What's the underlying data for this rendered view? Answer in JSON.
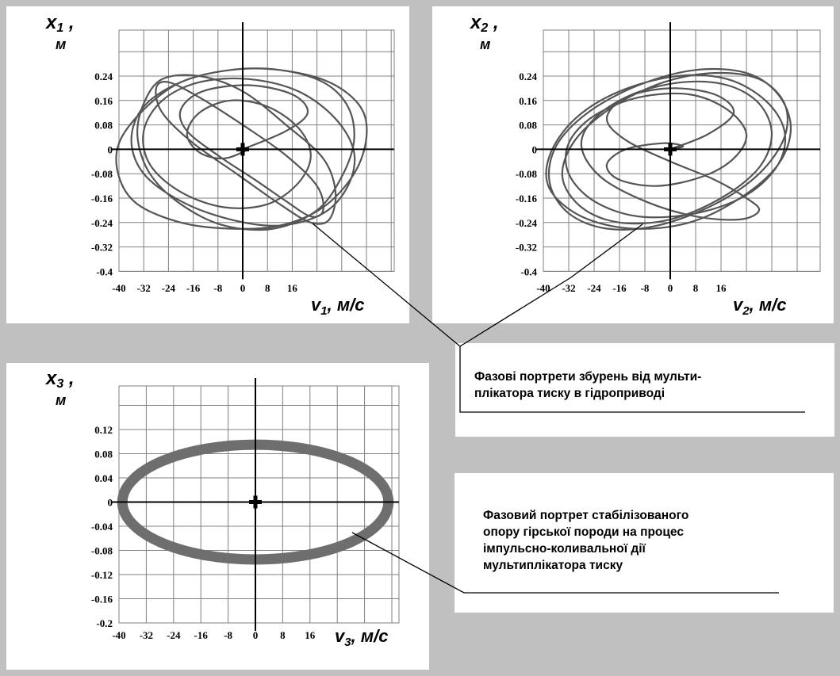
{
  "chart_data": [
    {
      "type": "line",
      "ylabel_symbol": "x",
      "ylabel_sub": "1",
      "ylabel_suffix": ",",
      "ylabel_unit": "м",
      "xlabel_symbol": "v",
      "xlabel_sub": "1",
      "xlabel_unit": ", м/с",
      "x_ticks": [
        "-40",
        "-32",
        "-24",
        "-16",
        "-8",
        "0",
        "8",
        "16"
      ],
      "y_ticks": [
        "0.24",
        "0.16",
        "0.08",
        "0",
        "-0.08",
        "-0.16",
        "-0.24",
        "-0.32",
        "-0.4"
      ],
      "xlim": [
        -40,
        40
      ],
      "ylim": [
        -0.4,
        0.32
      ],
      "grid": true,
      "series": [
        {
          "description_free": true,
          "x": [
            0,
            14,
            21,
            16,
            2,
            -13,
            -20,
            -18,
            -8,
            4,
            14,
            22,
            26,
            24,
            14,
            0,
            -14,
            -24,
            -28,
            -26,
            -16,
            -2,
            12,
            22,
            28,
            30,
            26,
            14,
            0,
            -14,
            -26,
            -32,
            -34,
            -30,
            -20,
            -6,
            10,
            24,
            32,
            36,
            34,
            26,
            12,
            -4,
            -20,
            -32,
            -40,
            -40,
            -34,
            -20,
            -4,
            12,
            26,
            36,
            40,
            38,
            28,
            12,
            -4,
            -20,
            -32,
            -36,
            -32,
            -20,
            -4,
            12,
            26,
            34,
            36,
            30,
            18,
            2,
            -14,
            -26,
            -32,
            -30,
            -20,
            -6,
            8,
            18,
            22,
            18,
            8,
            -4,
            -14,
            -18,
            -14,
            -6,
            2
          ],
          "y": [
            0,
            0.06,
            0.12,
            0.18,
            0.21,
            0.19,
            0.13,
            0.06,
            -0.02,
            -0.1,
            -0.17,
            -0.22,
            -0.2,
            -0.12,
            -0.02,
            0.08,
            0.17,
            0.22,
            0.2,
            0.12,
            0.02,
            -0.08,
            -0.18,
            -0.24,
            -0.23,
            -0.14,
            -0.03,
            0.08,
            0.19,
            0.24,
            0.23,
            0.15,
            0.04,
            -0.08,
            -0.18,
            -0.25,
            -0.26,
            -0.2,
            -0.09,
            0.03,
            0.14,
            0.22,
            0.26,
            0.26,
            0.22,
            0.13,
            0.02,
            -0.09,
            -0.18,
            -0.24,
            -0.26,
            -0.25,
            -0.19,
            -0.08,
            0.04,
            0.14,
            0.22,
            0.26,
            0.26,
            0.22,
            0.14,
            0.03,
            -0.08,
            -0.17,
            -0.23,
            -0.25,
            -0.21,
            -0.12,
            -0.01,
            0.1,
            0.19,
            0.23,
            0.22,
            0.16,
            0.06,
            -0.05,
            -0.14,
            -0.19,
            -0.18,
            -0.11,
            -0.02,
            0.07,
            0.14,
            0.16,
            0.12,
            0.05,
            -0.01,
            -0.03,
            0
          ]
        }
      ]
    },
    {
      "type": "line",
      "ylabel_symbol": "x",
      "ylabel_sub": "2",
      "ylabel_suffix": ",",
      "ylabel_unit": "м",
      "xlabel_symbol": "v",
      "xlabel_sub": "2",
      "xlabel_unit": ", м/с",
      "x_ticks": [
        "-40",
        "-32",
        "-24",
        "-16",
        "-8",
        "0",
        "8",
        "16"
      ],
      "y_ticks": [
        "0.24",
        "0.16",
        "0.08",
        "0",
        "-0.08",
        "-0.16",
        "-0.24",
        "-0.32",
        "-0.4"
      ],
      "xlim": [
        -40,
        40
      ],
      "ylim": [
        -0.4,
        0.32
      ],
      "grid": true,
      "series": [
        {
          "x": [
            0,
            12,
            20,
            14,
            0,
            -14,
            -20,
            -14,
            0,
            14,
            24,
            28,
            22,
            8,
            -8,
            -22,
            -28,
            -24,
            -12,
            4,
            18,
            28,
            32,
            28,
            16,
            0,
            -16,
            -28,
            -34,
            -30,
            -18,
            -2,
            14,
            28,
            36,
            36,
            28,
            14,
            -4,
            -20,
            -32,
            -38,
            -36,
            -26,
            -10,
            8,
            24,
            34,
            38,
            34,
            22,
            6,
            -12,
            -28,
            -38,
            -38,
            -30,
            -16,
            2,
            18,
            30,
            36,
            34,
            24,
            8,
            -10,
            -24,
            -32,
            -32,
            -24,
            -10,
            6,
            18,
            24,
            20,
            10,
            -4,
            -16,
            -20,
            -14,
            -2,
            4,
            0
          ],
          "y": [
            0,
            0.05,
            0.12,
            0.18,
            0.2,
            0.17,
            0.1,
            0.03,
            -0.04,
            -0.1,
            -0.16,
            -0.2,
            -0.23,
            -0.22,
            -0.17,
            -0.09,
            0.01,
            0.1,
            0.18,
            0.22,
            0.21,
            0.15,
            0.05,
            -0.06,
            -0.16,
            -0.23,
            -0.24,
            -0.19,
            -0.09,
            0.03,
            0.14,
            0.22,
            0.25,
            0.23,
            0.15,
            0.04,
            -0.08,
            -0.18,
            -0.25,
            -0.26,
            -0.21,
            -0.11,
            0.01,
            0.12,
            0.21,
            0.26,
            0.25,
            0.18,
            0.07,
            -0.05,
            -0.16,
            -0.24,
            -0.26,
            -0.22,
            -0.13,
            -0.02,
            0.1,
            0.19,
            0.24,
            0.23,
            0.16,
            0.06,
            -0.05,
            -0.15,
            -0.21,
            -0.22,
            -0.17,
            -0.08,
            0.02,
            0.11,
            0.17,
            0.18,
            0.13,
            0.05,
            -0.03,
            -0.09,
            -0.12,
            -0.1,
            -0.05,
            0,
            0.02,
            0.01,
            0
          ]
        }
      ]
    },
    {
      "type": "line",
      "ylabel_symbol": "x",
      "ylabel_sub": "3",
      "ylabel_suffix": ",",
      "ylabel_unit": "м",
      "xlabel_symbol": "v",
      "xlabel_sub": "3",
      "xlabel_unit": ", м/с",
      "x_ticks": [
        "-40",
        "-32",
        "-24",
        "-16",
        "-8",
        "0",
        "8",
        "16"
      ],
      "y_ticks": [
        "0.12",
        "0.08",
        "0.04",
        "0",
        "-0.04",
        "-0.08",
        "-0.12",
        "-0.16",
        "-0.2"
      ],
      "xlim": [
        -40,
        40
      ],
      "ylim": [
        -0.2,
        0.16
      ],
      "grid": true,
      "series": [
        {
          "type": "ellipse",
          "center": [
            0,
            0
          ],
          "radius_x": 39,
          "radius_y": 0.095
        }
      ]
    }
  ],
  "captions": {
    "top": {
      "line1": "Фазові портрети збурень від мульти-",
      "line2": "плікатора тиску в гідроприводі"
    },
    "bottom": {
      "line1": "Фазовий портрет стабілізованого",
      "line2": "опору гірської породи на процес",
      "line3": "імпульсно-коливальної дії",
      "line4": "мультиплікатора  тиску"
    }
  },
  "colors": {
    "background": "#c0c0c0",
    "panel": "#ffffff",
    "curve": "#555555",
    "ellipse": "#6e6e6e",
    "grid": "#808080",
    "axis": "#000000"
  }
}
